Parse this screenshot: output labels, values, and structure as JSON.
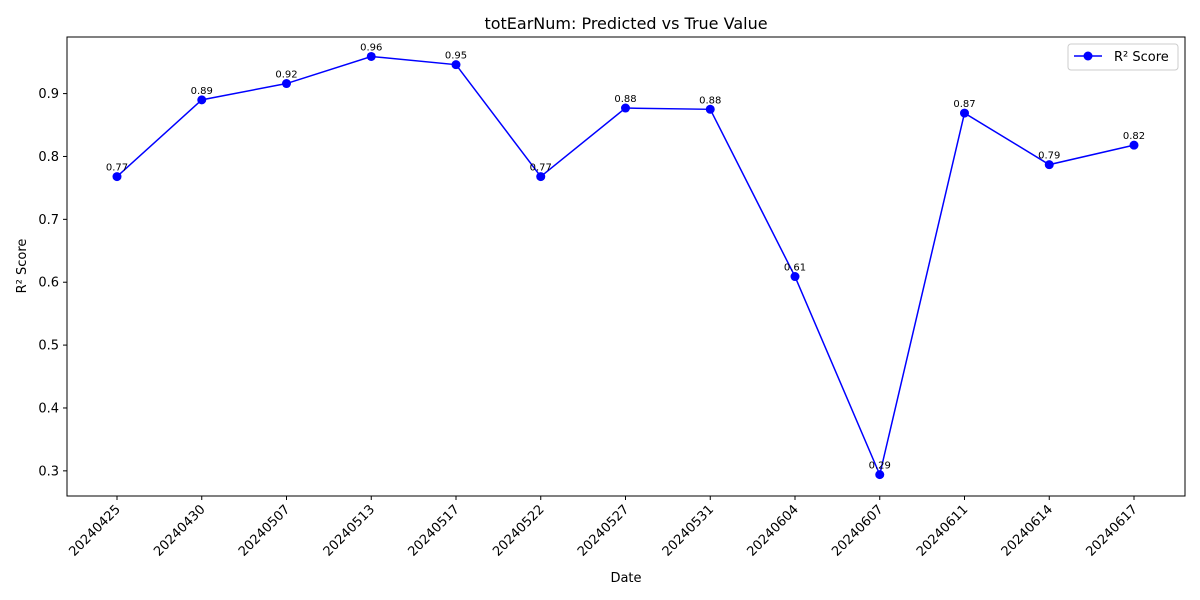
{
  "chart_data": {
    "type": "line",
    "title": "totEarNum: Predicted vs True Value",
    "xlabel": "Date",
    "ylabel": "R² Score",
    "categories": [
      "20240425",
      "20240430",
      "20240507",
      "20240513",
      "20240517",
      "20240522",
      "20240527",
      "20240531",
      "20240604",
      "20240607",
      "20240611",
      "20240614",
      "20240617"
    ],
    "series": [
      {
        "name": "R² Score",
        "color": "#0000ff",
        "marker": "circle",
        "values": [
          0.768,
          0.89,
          0.916,
          0.959,
          0.946,
          0.768,
          0.877,
          0.875,
          0.609,
          0.294,
          0.869,
          0.787,
          0.818
        ],
        "labels": [
          "0.77",
          "0.89",
          "0.92",
          "0.96",
          "0.95",
          "0.77",
          "0.88",
          "0.88",
          "0.61",
          "0.29",
          "0.87",
          "0.79",
          "0.82"
        ]
      }
    ],
    "ylim": [
      0.26,
      0.99
    ],
    "yticks": [
      "0.3",
      "0.4",
      "0.5",
      "0.6",
      "0.7",
      "0.8",
      "0.9"
    ],
    "grid": false,
    "legend": "top-right"
  }
}
